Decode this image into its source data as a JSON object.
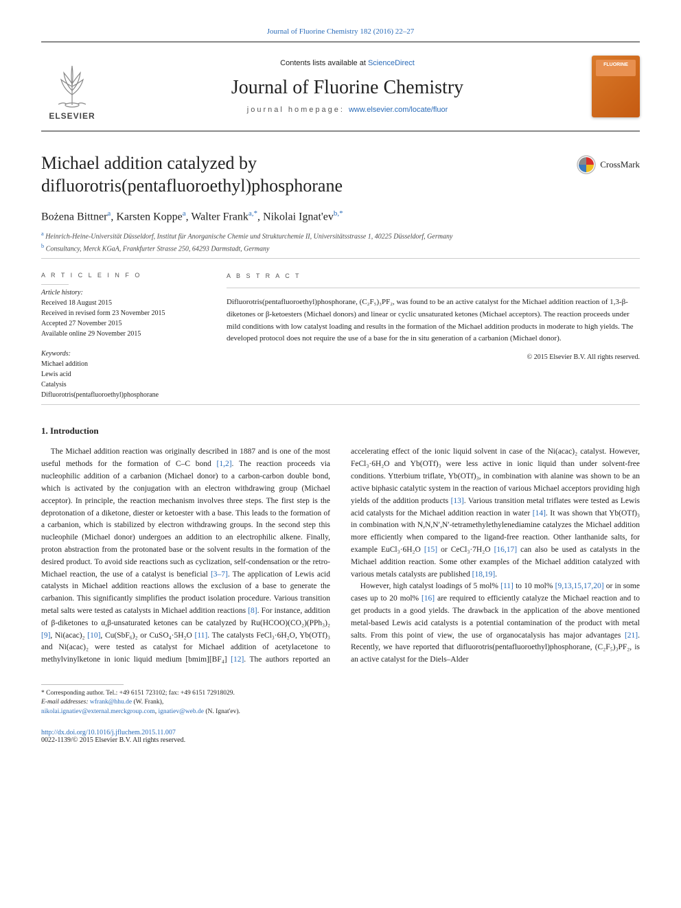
{
  "header": {
    "top_citation": "Journal of Fluorine Chemistry 182 (2016) 22–27",
    "contents_prefix": "Contents lists available at ",
    "contents_link": "ScienceDirect",
    "journal_name": "Journal of Fluorine Chemistry",
    "homepage_prefix": "journal homepage: ",
    "homepage_url": "www.elsevier.com/locate/fluor",
    "publisher_logo_text": "ELSEVIER",
    "crossmark_label": "CrossMark"
  },
  "article": {
    "title": "Michael addition catalyzed by difluorotris(pentafluoroethyl)phosphorane",
    "authors_html": "Bożena Bittner<sup>a</sup>, Karsten Koppe<sup>a</sup>, Walter Frank<sup>a,*</sup>, Nikolai Ignat'ev<sup>b,*</sup>",
    "affiliations": [
      {
        "sup": "a",
        "text": "Heinrich-Heine-Universität Düsseldorf, Institut für Anorganische Chemie und Strukturchemie II, Universitätsstrasse 1, 40225 Düsseldorf, Germany"
      },
      {
        "sup": "b",
        "text": "Consultancy, Merck KGaA, Frankfurter Strasse 250, 64293 Darmstadt, Germany"
      }
    ]
  },
  "article_info": {
    "label": "A R T I C L E   I N F O",
    "history_title": "Article history:",
    "history": [
      "Received 18 August 2015",
      "Received in revised form 23 November 2015",
      "Accepted 27 November 2015",
      "Available online 29 November 2015"
    ],
    "keywords_title": "Keywords:",
    "keywords": [
      "Michael addition",
      "Lewis acid",
      "Catalysis",
      "Difluorotris(pentafluoroethyl)phosphorane"
    ]
  },
  "abstract": {
    "label": "A B S T R A C T",
    "text": "Difluorotris(pentafluoroethyl)phosphorane, (C₂F₅)₃PF₂, was found to be an active catalyst for the Michael addition reaction of 1,3-β-diketones or β-ketoesters (Michael donors) and linear or cyclic unsaturated ketones (Michael acceptors). The reaction proceeds under mild conditions with low catalyst loading and results in the formation of the Michael addition products in moderate to high yields. The developed protocol does not require the use of a base for the in situ generation of a carbanion (Michael donor).",
    "copyright": "© 2015 Elsevier B.V. All rights reserved."
  },
  "section1": {
    "title": "1. Introduction",
    "p1_pre": "The Michael addition reaction was originally described in 1887 and is one of the most useful methods for the formation of C–C bond ",
    "p1_ref1": "[1,2]",
    "p1_mid": ". The reaction proceeds via nucleophilic addition of a carbanion (Michael donor) to a carbon-carbon double bond, which is activated by the conjugation with an electron withdrawing group (Michael acceptor). In principle, the reaction mechanism involves three steps. The first step is the deprotonation of a diketone, diester or ketoester with a base. This leads to the formation of a carbanion, which is stabilized by electron withdrawing groups. In the second step this nucleophile (Michael donor) undergoes an addition to an electrophilic alkene. Finally, proton abstraction from the protonated base or the solvent results in the formation of the desired product. To avoid side reactions such as cyclization, self-condensation or the retro-Michael reaction, the use of a catalyst is beneficial ",
    "p1_ref2": "[3–7]",
    "p1_mid2": ". The application of Lewis acid catalysts in Michael addition reactions allows the exclusion of a base to generate the carbanion. This significantly simplifies the product isolation procedure. Various transition metal salts were tested as catalysts in Michael addition reactions ",
    "p1_ref3": "[8]",
    "p1_mid3": ". For instance, addition of β-diketones to α,β-unsaturated ketones can be catalyzed by Ru(HCOO)(CO₂)(PPh₃)₂ ",
    "p1_ref4": "[9]",
    "p1_end": ", Ni(acac)₂ ",
    "p2_ref1": "[10]",
    "p2_a": ", Cu(SbF₆)₂ or CuSO₄·5H₂O ",
    "p2_ref2": "[11]",
    "p2_b": ". The catalysts FeCl₃·6H₂O, Yb(OTf)₃ and Ni(acac)₂ were tested as catalyst for Michael addition of acetylacetone to methylvinylketone in ionic liquid medium [bmim][BF₄] ",
    "p2_ref3": "[12]",
    "p2_c": ". The authors reported an accelerating effect of the ionic liquid solvent in case of the Ni(acac)₂ catalyst. However, FeCl₃·6H₂O and Yb(OTf)₃ were less active in ionic liquid than under solvent-free conditions. Ytterbium triflate, Yb(OTf)₃, in combination with alanine was shown to be an active biphasic catalytic system in the reaction of various Michael acceptors providing high yields of the addition products ",
    "p2_ref4": "[13]",
    "p2_d": ". Various transition metal triflates were tested as Lewis acid catalysts for the Michael addition reaction in water ",
    "p2_ref5": "[14]",
    "p2_e": ". It was shown that Yb(OTf)₃ in combination with N,N,N′,N′-tetramethylethylenediamine catalyzes the Michael addition more efficiently when compared to the ligand-free reaction. Other lanthanide salts, for example EuCl₃·6H₂O ",
    "p2_ref6": "[15]",
    "p2_f": " or CeCl₃·7H₂O ",
    "p2_ref7": "[16,17]",
    "p2_g": " can also be used as catalysts in the Michael addition reaction. Some other examples of the Michael addition catalyzed with various metals catalysts are published ",
    "p2_ref8": "[18,19]",
    "p2_h": ".",
    "p3_a": "However, high catalyst loadings of 5 mol% ",
    "p3_ref1": "[11]",
    "p3_b": " to 10 mol% ",
    "p3_ref2": "[9,13,15,17,20]",
    "p3_c": " or in some cases up to 20 mol% ",
    "p3_ref3": "[16]",
    "p3_d": " are required to efficiently catalyze the Michael reaction and to get products in a good yields. The drawback in the application of the above mentioned metal-based Lewis acid catalysts is a potential contamination of the product with metal salts. From this point of view, the use of organocatalysis has major advantages ",
    "p3_ref4": "[21]",
    "p3_e": ". Recently, we have reported that difluorotris(pentafluoroethyl)phosphorane, (C₂F₅)₃PF₂, is an active catalyst for the Diels–Alder"
  },
  "footnotes": {
    "corresponding": "* Corresponding author. Tel.: +49 6151 723102; fax: +49 6151 72918029.",
    "emails_label": "E-mail addresses: ",
    "email1": "wfrank@hhu.de",
    "email1_who": " (W. Frank),",
    "email2": "nikolai.ignatiev@external.merckgroup.com",
    "email3": "ignatiev@web.de",
    "email3_who": " (N. Ignat'ev)."
  },
  "footer": {
    "doi": "http://dx.doi.org/10.1016/j.jfluchem.2015.11.007",
    "issn_copy": "0022-1139/© 2015 Elsevier B.V. All rights reserved."
  },
  "colors": {
    "link": "#2a6bb8",
    "rule": "#cccccc",
    "cover_bg": "#d97a2a"
  }
}
